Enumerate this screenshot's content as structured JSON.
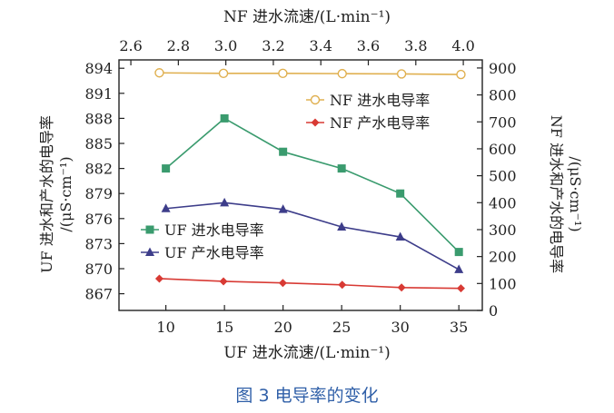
{
  "chart_data": {
    "type": "line",
    "caption": "图 3    电导率的变化",
    "x_bottom": {
      "label": "UF 进水流速/(L·min⁻¹)",
      "lim": [
        6,
        37
      ],
      "ticks": [
        10,
        15,
        20,
        25,
        30,
        35
      ]
    },
    "x_top": {
      "label": "NF 进水流速/(L·min⁻¹)",
      "lim": [
        2.55,
        4.08
      ],
      "ticks": [
        2.6,
        2.8,
        3.0,
        3.2,
        3.4,
        3.6,
        3.8,
        4.0
      ],
      "tick_labels": [
        "2.6",
        "2.8",
        "3.0",
        "3.2",
        "3.4",
        "3.6",
        "3.8",
        "4.0"
      ]
    },
    "y_left": {
      "label_line1": "UF 进水和产水的电导率",
      "label_line2": "/(μS·cm⁻¹)",
      "lim": [
        865,
        895
      ],
      "ticks": [
        867,
        870,
        873,
        876,
        879,
        882,
        885,
        888,
        891,
        894
      ]
    },
    "y_right": {
      "label_line1": "NF 进水和产水的电导率",
      "label_line2": "/(μS·cm⁻¹)",
      "lim": [
        0,
        930
      ],
      "ticks": [
        0,
        100,
        200,
        300,
        400,
        500,
        600,
        700,
        800,
        900
      ]
    },
    "series": [
      {
        "name": "NF 进水电导率",
        "axis": "top-right",
        "marker": "circle-open",
        "color": "#e0b050",
        "x": [
          2.72,
          2.99,
          3.24,
          3.49,
          3.74,
          3.99
        ],
        "y": [
          882,
          880,
          880,
          879,
          878,
          876
        ]
      },
      {
        "name": "NF 产水电导率",
        "axis": "top-right",
        "marker": "diamond",
        "color": "#d83a34",
        "x": [
          2.72,
          2.99,
          3.24,
          3.49,
          3.74,
          3.99
        ],
        "y": [
          118,
          108,
          102,
          95,
          85,
          82
        ]
      },
      {
        "name": "UF 进水电导率",
        "axis": "bottom-left",
        "marker": "square",
        "color": "#3a9b6e",
        "x": [
          10,
          15,
          20,
          25,
          30,
          35
        ],
        "y": [
          882,
          888,
          884,
          882,
          879,
          872
        ]
      },
      {
        "name": "UF 产水电导率",
        "axis": "bottom-left",
        "marker": "triangle",
        "color": "#3d3d8a",
        "x": [
          10,
          15,
          20,
          25,
          30,
          35
        ],
        "y": [
          877.2,
          877.9,
          877.1,
          875,
          873.8,
          869.9
        ]
      }
    ],
    "legends": [
      {
        "placement": "upper-right",
        "series": [
          0,
          1
        ]
      },
      {
        "placement": "lower-left",
        "series": [
          2,
          3
        ]
      }
    ]
  }
}
